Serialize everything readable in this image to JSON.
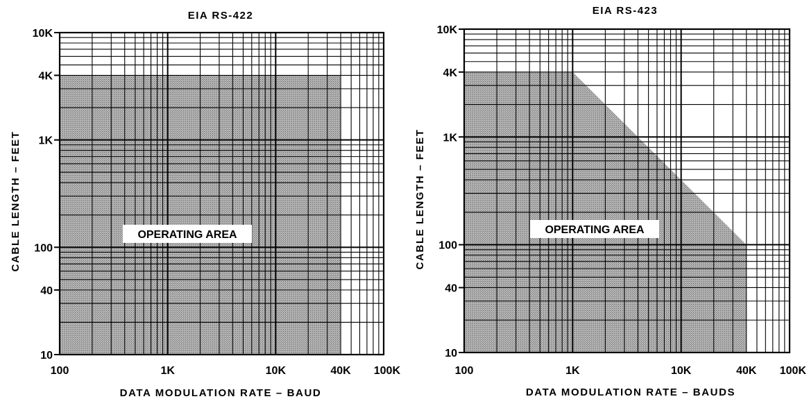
{
  "chart_data": [
    {
      "type": "area",
      "title": "EIA RS-422",
      "xlabel": "DATA MODULATION RATE – BAUD",
      "ylabel": "CABLE LENGTH – FEET",
      "xscale": "log",
      "yscale": "log",
      "xlim": [
        100,
        100000
      ],
      "ylim": [
        10,
        10000
      ],
      "grid": true,
      "x_ticks": [
        {
          "value": 100,
          "label": "100"
        },
        {
          "value": 1000,
          "label": "1K"
        },
        {
          "value": 10000,
          "label": "10K"
        },
        {
          "value": 40000,
          "label": "40K"
        },
        {
          "value": 100000,
          "label": "100K"
        }
      ],
      "y_ticks": [
        {
          "value": 10,
          "label": "10"
        },
        {
          "value": 40,
          "label": "40"
        },
        {
          "value": 100,
          "label": "100"
        },
        {
          "value": 1000,
          "label": "1K"
        },
        {
          "value": 4000,
          "label": "4K"
        },
        {
          "value": 10000,
          "label": "10K"
        }
      ],
      "region": {
        "label": "OPERATING AREA",
        "points": [
          [
            100,
            10
          ],
          [
            100,
            4000
          ],
          [
            40000,
            4000
          ],
          [
            40000,
            10
          ]
        ]
      }
    },
    {
      "type": "area",
      "title": "EIA RS-423",
      "xlabel": "DATA MODULATION RATE – BAUDS",
      "ylabel": "CABLE LENGTH – FEET",
      "xscale": "log",
      "yscale": "log",
      "xlim": [
        100,
        100000
      ],
      "ylim": [
        10,
        10000
      ],
      "grid": true,
      "x_ticks": [
        {
          "value": 100,
          "label": "100"
        },
        {
          "value": 1000,
          "label": "1K"
        },
        {
          "value": 10000,
          "label": "10K"
        },
        {
          "value": 40000,
          "label": "40K"
        },
        {
          "value": 100000,
          "label": "100K"
        }
      ],
      "y_ticks": [
        {
          "value": 10,
          "label": "10"
        },
        {
          "value": 40,
          "label": "40"
        },
        {
          "value": 100,
          "label": "100"
        },
        {
          "value": 1000,
          "label": "1K"
        },
        {
          "value": 4000,
          "label": "4K"
        },
        {
          "value": 10000,
          "label": "10K"
        }
      ],
      "region": {
        "label": "OPERATING AREA",
        "points": [
          [
            100,
            10
          ],
          [
            100,
            4000
          ],
          [
            1000,
            4000
          ],
          [
            40000,
            100
          ],
          [
            40000,
            10
          ]
        ]
      }
    }
  ],
  "colors": {
    "shade": "#a4a4a4",
    "grid": "#000000",
    "background": "#ffffff",
    "label_box": "#ffffff"
  }
}
